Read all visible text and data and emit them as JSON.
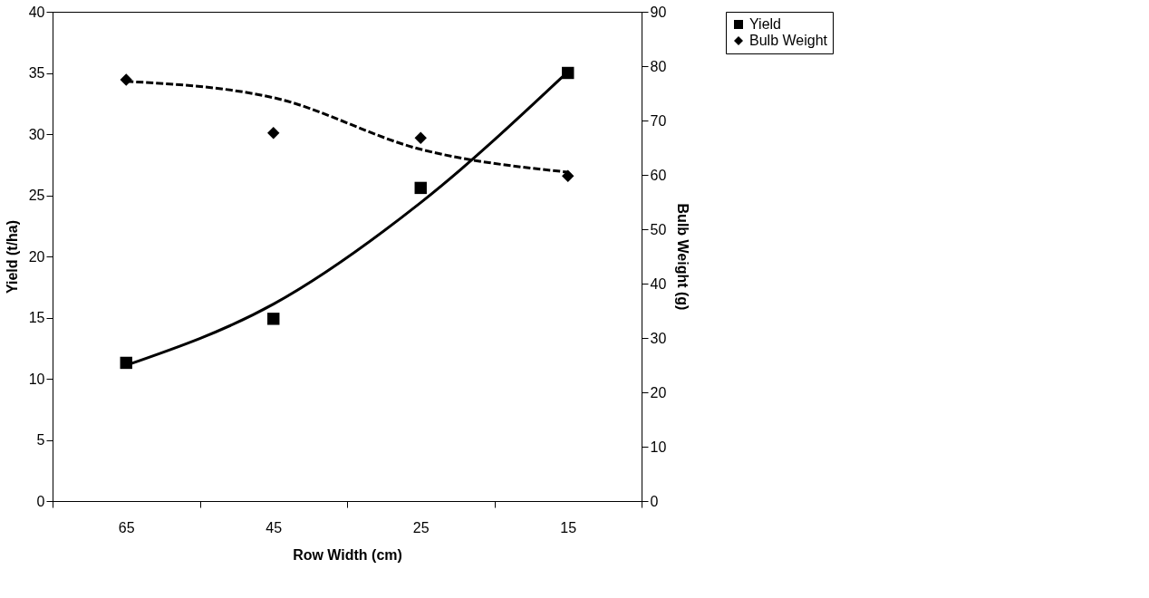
{
  "chart_data": {
    "type": "scatter",
    "categories": [
      "65",
      "45",
      "25",
      "15"
    ],
    "xlabel": "Row Width (cm)",
    "ylabel": "Yield (t/ha)",
    "y2label": "Bulb Weight (g)",
    "ylim": [
      0,
      40
    ],
    "yticks": [
      0,
      5,
      10,
      15,
      20,
      25,
      30,
      35,
      40
    ],
    "y2lim": [
      0,
      90
    ],
    "y2ticks": [
      0,
      10,
      20,
      30,
      40,
      50,
      60,
      70,
      80,
      90
    ],
    "grid": false,
    "legend": "right",
    "series": [
      {
        "name": "Yield",
        "marker": "square",
        "color": "#000000",
        "values": [
          11.3,
          14.9,
          25.6,
          35.0
        ]
      },
      {
        "name": "Bulb Weight",
        "marker": "diamond",
        "axis": "y2",
        "color": "#000000",
        "values": [
          77.5,
          67.7,
          66.8,
          59.8
        ]
      },
      {
        "type": "line",
        "line_style": "solid",
        "color": "#000000",
        "values": [
          11.1,
          16.1,
          24.4,
          35.1
        ]
      },
      {
        "type": "line",
        "line_style": "dashed",
        "axis": "y2",
        "color": "#000000",
        "values": [
          77.2,
          74.2,
          64.7,
          60.5
        ]
      }
    ]
  }
}
